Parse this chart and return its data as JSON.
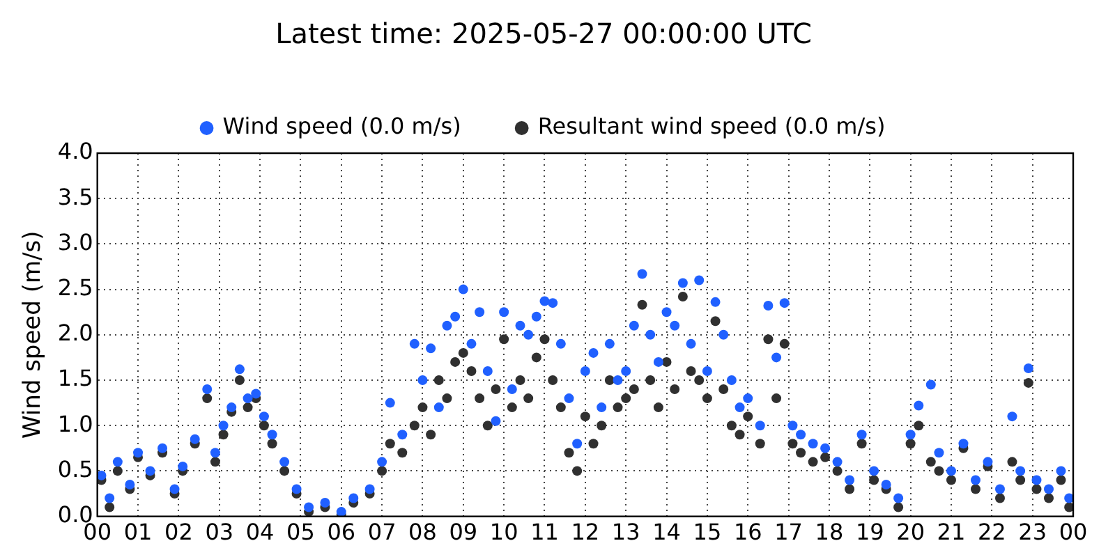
{
  "chart_data": {
    "type": "scatter",
    "title": "Latest time: 2025-05-27 00:00:00 UTC",
    "ylabel": "Wind speed (m/s)",
    "legend": "top",
    "grid": true,
    "marker": "circle",
    "xlim": [
      0,
      24
    ],
    "ylim": [
      0,
      4
    ],
    "xticks": [
      {
        "value": 0,
        "label": "00"
      },
      {
        "value": 1,
        "label": "01"
      },
      {
        "value": 2,
        "label": "02"
      },
      {
        "value": 3,
        "label": "03"
      },
      {
        "value": 4,
        "label": "04"
      },
      {
        "value": 5,
        "label": "05"
      },
      {
        "value": 6,
        "label": "06"
      },
      {
        "value": 7,
        "label": "07"
      },
      {
        "value": 8,
        "label": "08"
      },
      {
        "value": 9,
        "label": "09"
      },
      {
        "value": 10,
        "label": "10"
      },
      {
        "value": 11,
        "label": "11"
      },
      {
        "value": 12,
        "label": "12"
      },
      {
        "value": 13,
        "label": "13"
      },
      {
        "value": 14,
        "label": "14"
      },
      {
        "value": 15,
        "label": "15"
      },
      {
        "value": 16,
        "label": "16"
      },
      {
        "value": 17,
        "label": "17"
      },
      {
        "value": 18,
        "label": "18"
      },
      {
        "value": 19,
        "label": "19"
      },
      {
        "value": 20,
        "label": "20"
      },
      {
        "value": 21,
        "label": "21"
      },
      {
        "value": 22,
        "label": "22"
      },
      {
        "value": 23,
        "label": "23"
      },
      {
        "value": 24,
        "label": "00"
      }
    ],
    "yticks": [
      {
        "value": 0,
        "label": "0.0"
      },
      {
        "value": 0.5,
        "label": "0.5"
      },
      {
        "value": 1,
        "label": "1.0"
      },
      {
        "value": 1.5,
        "label": "1.5"
      },
      {
        "value": 2,
        "label": "2.0"
      },
      {
        "value": 2.5,
        "label": "2.5"
      },
      {
        "value": 3,
        "label": "3.0"
      },
      {
        "value": 3.5,
        "label": "3.5"
      },
      {
        "value": 4,
        "label": "4.0"
      }
    ],
    "x": [
      0.1,
      0.3,
      0.5,
      0.8,
      1.0,
      1.3,
      1.6,
      1.9,
      2.1,
      2.4,
      2.7,
      2.9,
      3.1,
      3.3,
      3.5,
      3.7,
      3.9,
      4.1,
      4.3,
      4.6,
      4.9,
      5.2,
      5.6,
      6.0,
      6.3,
      6.7,
      7.0,
      7.2,
      7.5,
      7.8,
      8.0,
      8.2,
      8.4,
      8.6,
      8.8,
      9.0,
      9.2,
      9.4,
      9.6,
      9.8,
      10.0,
      10.2,
      10.4,
      10.6,
      10.8,
      11.0,
      11.2,
      11.4,
      11.6,
      11.8,
      12.0,
      12.2,
      12.4,
      12.6,
      12.8,
      13.0,
      13.2,
      13.4,
      13.6,
      13.8,
      14.0,
      14.2,
      14.4,
      14.6,
      14.8,
      15.0,
      15.2,
      15.4,
      15.6,
      15.8,
      16.0,
      16.3,
      16.5,
      16.7,
      16.9,
      17.1,
      17.3,
      17.6,
      17.9,
      18.2,
      18.5,
      18.8,
      19.1,
      19.4,
      19.7,
      20.0,
      20.2,
      20.5,
      20.7,
      21.0,
      21.3,
      21.6,
      21.9,
      22.2,
      22.5,
      22.7,
      22.9,
      23.1,
      23.4,
      23.7,
      23.9
    ],
    "series": [
      {
        "name": "Wind speed (0.0 m/s)",
        "color": "#2060ff",
        "values": [
          0.45,
          0.2,
          0.6,
          0.35,
          0.7,
          0.5,
          0.75,
          0.3,
          0.55,
          0.85,
          1.4,
          0.7,
          1.0,
          1.2,
          1.62,
          1.3,
          1.35,
          1.1,
          0.9,
          0.6,
          0.3,
          0.1,
          0.15,
          0.05,
          0.2,
          0.3,
          0.6,
          1.25,
          0.9,
          1.9,
          1.5,
          1.85,
          1.2,
          2.1,
          2.2,
          2.5,
          1.9,
          2.25,
          1.6,
          1.05,
          2.25,
          1.4,
          2.1,
          2.0,
          2.2,
          2.37,
          2.35,
          1.9,
          1.3,
          0.8,
          1.6,
          1.8,
          1.2,
          1.9,
          1.5,
          1.6,
          2.1,
          2.67,
          2.0,
          1.7,
          2.25,
          2.1,
          2.57,
          1.9,
          2.6,
          1.6,
          2.36,
          2.0,
          1.5,
          1.2,
          1.3,
          1.0,
          2.32,
          1.75,
          2.35,
          1.0,
          0.9,
          0.8,
          0.75,
          0.6,
          0.4,
          0.9,
          0.5,
          0.35,
          0.2,
          0.9,
          1.22,
          1.45,
          0.7,
          0.5,
          0.8,
          0.4,
          0.6,
          0.3,
          1.1,
          0.5,
          1.63,
          0.4,
          0.3,
          0.5,
          0.2
        ]
      },
      {
        "name": "Resultant wind speed (0.0 m/s)",
        "color": "#303030",
        "values": [
          0.4,
          0.1,
          0.5,
          0.3,
          0.65,
          0.45,
          0.7,
          0.25,
          0.5,
          0.8,
          1.3,
          0.6,
          0.9,
          1.15,
          1.5,
          1.2,
          1.3,
          1.0,
          0.8,
          0.5,
          0.25,
          0.05,
          0.1,
          0.02,
          0.15,
          0.25,
          0.5,
          0.8,
          0.7,
          1.0,
          1.2,
          0.9,
          1.5,
          1.3,
          1.7,
          1.8,
          1.6,
          1.3,
          1.0,
          1.4,
          1.95,
          1.2,
          1.5,
          1.3,
          1.75,
          1.95,
          1.5,
          1.2,
          0.7,
          0.5,
          1.1,
          0.8,
          1.0,
          1.5,
          1.2,
          1.3,
          1.4,
          2.33,
          1.5,
          1.2,
          1.7,
          1.4,
          2.42,
          1.6,
          1.5,
          1.3,
          2.15,
          1.4,
          1.0,
          0.9,
          1.1,
          0.8,
          1.95,
          1.3,
          1.9,
          0.8,
          0.7,
          0.6,
          0.65,
          0.5,
          0.3,
          0.8,
          0.4,
          0.3,
          0.1,
          0.8,
          1.0,
          0.6,
          0.5,
          0.4,
          0.75,
          0.3,
          0.55,
          0.2,
          0.6,
          0.4,
          1.47,
          0.3,
          0.2,
          0.4,
          0.1
        ]
      }
    ]
  }
}
